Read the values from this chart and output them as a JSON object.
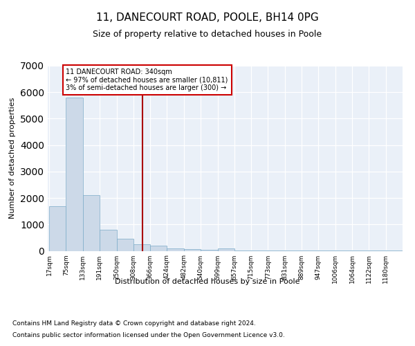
{
  "title1": "11, DANECOURT ROAD, POOLE, BH14 0PG",
  "title2": "Size of property relative to detached houses in Poole",
  "xlabel": "Distribution of detached houses by size in Poole",
  "ylabel": "Number of detached properties",
  "footnote1": "Contains HM Land Registry data © Crown copyright and database right 2024.",
  "footnote2": "Contains public sector information licensed under the Open Government Licence v3.0.",
  "annotation_line1": "11 DANECOURT ROAD: 340sqm",
  "annotation_line2": "← 97% of detached houses are smaller (10,811)",
  "annotation_line3": "3% of semi-detached houses are larger (300) →",
  "property_size": 340,
  "bar_color": "#ccd9e8",
  "bar_edge_color": "#7aaac8",
  "vline_color": "#aa0000",
  "annotation_box_color": "#cc0000",
  "background_color": "#eaf0f8",
  "ylim": [
    0,
    7000
  ],
  "bin_labels": [
    "17sqm",
    "75sqm",
    "133sqm",
    "191sqm",
    "250sqm",
    "308sqm",
    "366sqm",
    "424sqm",
    "482sqm",
    "540sqm",
    "599sqm",
    "657sqm",
    "715sqm",
    "773sqm",
    "831sqm",
    "889sqm",
    "947sqm",
    "1006sqm",
    "1064sqm",
    "1122sqm",
    "1180sqm"
  ],
  "bar_heights": [
    1700,
    5800,
    2100,
    800,
    450,
    250,
    200,
    100,
    75,
    50,
    100,
    20,
    20,
    10,
    5,
    5,
    3,
    3,
    2,
    2,
    2
  ],
  "bin_edges": [
    17,
    75,
    133,
    191,
    250,
    308,
    366,
    424,
    482,
    540,
    599,
    657,
    715,
    773,
    831,
    889,
    947,
    1006,
    1064,
    1122,
    1180,
    1238
  ]
}
